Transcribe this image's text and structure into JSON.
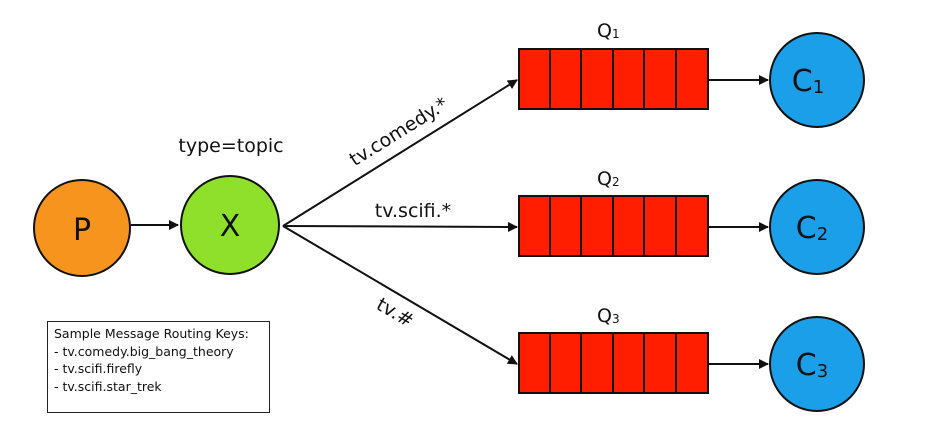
{
  "producer": {
    "label": "P",
    "fill": "#f7941d"
  },
  "exchange": {
    "label": "X",
    "type_text": "type=topic",
    "fill": "#8ee02a"
  },
  "bindings": [
    {
      "routing_key": "tv.comedy.*"
    },
    {
      "routing_key": "tv.scifi.*"
    },
    {
      "routing_key": "tv.#"
    }
  ],
  "queues": [
    {
      "label": "Q",
      "index": "1"
    },
    {
      "label": "Q",
      "index": "2"
    },
    {
      "label": "Q",
      "index": "3"
    }
  ],
  "consumers": [
    {
      "label": "C",
      "index": "1"
    },
    {
      "label": "C",
      "index": "2"
    },
    {
      "label": "C",
      "index": "3"
    }
  ],
  "colors": {
    "queue_fill": "#ff1f00",
    "consumer_fill": "#1a9fe8",
    "stroke": "#111111"
  },
  "sample_keys": {
    "title": "Sample Message Routing Keys:",
    "items": [
      "- tv.comedy.big_bang_theory",
      "- tv.scifi.firefly",
      "- tv.scifi.star_trek"
    ]
  }
}
